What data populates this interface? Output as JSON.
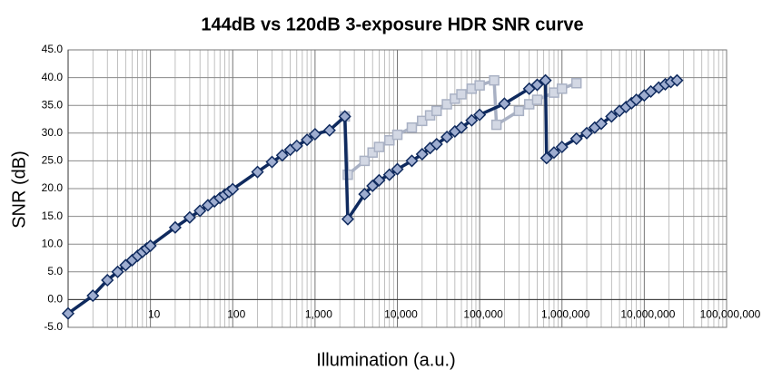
{
  "chart_data": {
    "type": "line",
    "title": "144dB vs 120dB 3-exposure HDR SNR curve",
    "x_label": "Illumination (a.u.)",
    "y_label": "SNR (dB)",
    "xlog": true,
    "grid": true,
    "minor_grid": true,
    "xlim": [
      1,
      100000000
    ],
    "xticks": [
      10,
      100,
      {
        "value": 1000,
        "label": "1,000"
      },
      {
        "value": 10000,
        "label": "10,000"
      },
      {
        "value": 100000,
        "label": "100,000"
      },
      {
        "value": 1000000,
        "label": "1,000,000"
      },
      {
        "value": 10000000,
        "label": "10,000,000"
      },
      {
        "value": 100000000,
        "label": "100,000,000"
      }
    ],
    "ylim": [
      -5,
      45
    ],
    "yticks": [
      {
        "value": -5,
        "label": "-5.0"
      },
      {
        "value": 0,
        "label": "0.0"
      },
      {
        "value": 5,
        "label": "5.0"
      },
      {
        "value": 10,
        "label": "10.0"
      },
      {
        "value": 15,
        "label": "15.0"
      },
      {
        "value": 20,
        "label": "20.0"
      },
      {
        "value": 25,
        "label": "25.0"
      },
      {
        "value": 30,
        "label": "30.0"
      },
      {
        "value": 35,
        "label": "35.0"
      },
      {
        "value": 40,
        "label": "40.0"
      },
      {
        "value": 45,
        "label": "45.0"
      }
    ],
    "series": [
      {
        "color": "#a9b1c4",
        "marker": "square",
        "x": [
          2300,
          2500,
          4000,
          5000,
          6000,
          8000,
          10000,
          15000,
          20000,
          25000,
          30000,
          40000,
          50000,
          60000,
          80000,
          100000,
          150000,
          160000,
          300000,
          400000,
          500000,
          800000,
          1000000,
          1500000
        ],
        "values": [
          33.0,
          22.5,
          25.0,
          26.5,
          27.5,
          28.7,
          29.7,
          31.0,
          32.2,
          33.2,
          34.0,
          35.2,
          36.2,
          37.0,
          38.0,
          38.6,
          39.5,
          31.5,
          34.0,
          35.2,
          36.0,
          37.3,
          38.0,
          39.0
        ]
      },
      {
        "color": "#0f2a5e",
        "marker": "diamond",
        "x": [
          1,
          2,
          3,
          4,
          5,
          6,
          7,
          8,
          9,
          10,
          20,
          30,
          40,
          50,
          60,
          70,
          80,
          90,
          100,
          200,
          300,
          400,
          500,
          600,
          800,
          1000,
          1500,
          2300,
          2500,
          4000,
          5000,
          6000,
          8000,
          10000,
          15000,
          20000,
          25000,
          30000,
          40000,
          50000,
          60000,
          80000,
          100000,
          200000,
          400000,
          500000,
          630000,
          650000,
          800000,
          1000000,
          1500000,
          2000000,
          2500000,
          3000000,
          4000000,
          5000000,
          6000000,
          7000000,
          8000000,
          10000000,
          12000000,
          15000000,
          18000000,
          21000000,
          25000000
        ],
        "values": [
          -2.5,
          0.7,
          3.5,
          5.0,
          6.2,
          7.1,
          7.9,
          8.6,
          9.2,
          9.7,
          13.0,
          14.8,
          16.0,
          17.0,
          17.7,
          18.3,
          18.9,
          19.4,
          19.9,
          23.0,
          24.8,
          26.0,
          27.0,
          27.7,
          28.8,
          29.8,
          30.5,
          33.0,
          14.5,
          19.0,
          20.5,
          21.5,
          22.5,
          23.5,
          25.0,
          26.2,
          27.3,
          28.0,
          29.3,
          30.3,
          31.0,
          32.3,
          33.3,
          35.3,
          38.0,
          38.7,
          39.5,
          25.5,
          26.5,
          27.5,
          29.0,
          30.0,
          31.0,
          31.7,
          33.0,
          34.0,
          34.7,
          35.4,
          36.0,
          36.8,
          37.5,
          38.2,
          38.8,
          39.2,
          39.5
        ]
      }
    ]
  }
}
